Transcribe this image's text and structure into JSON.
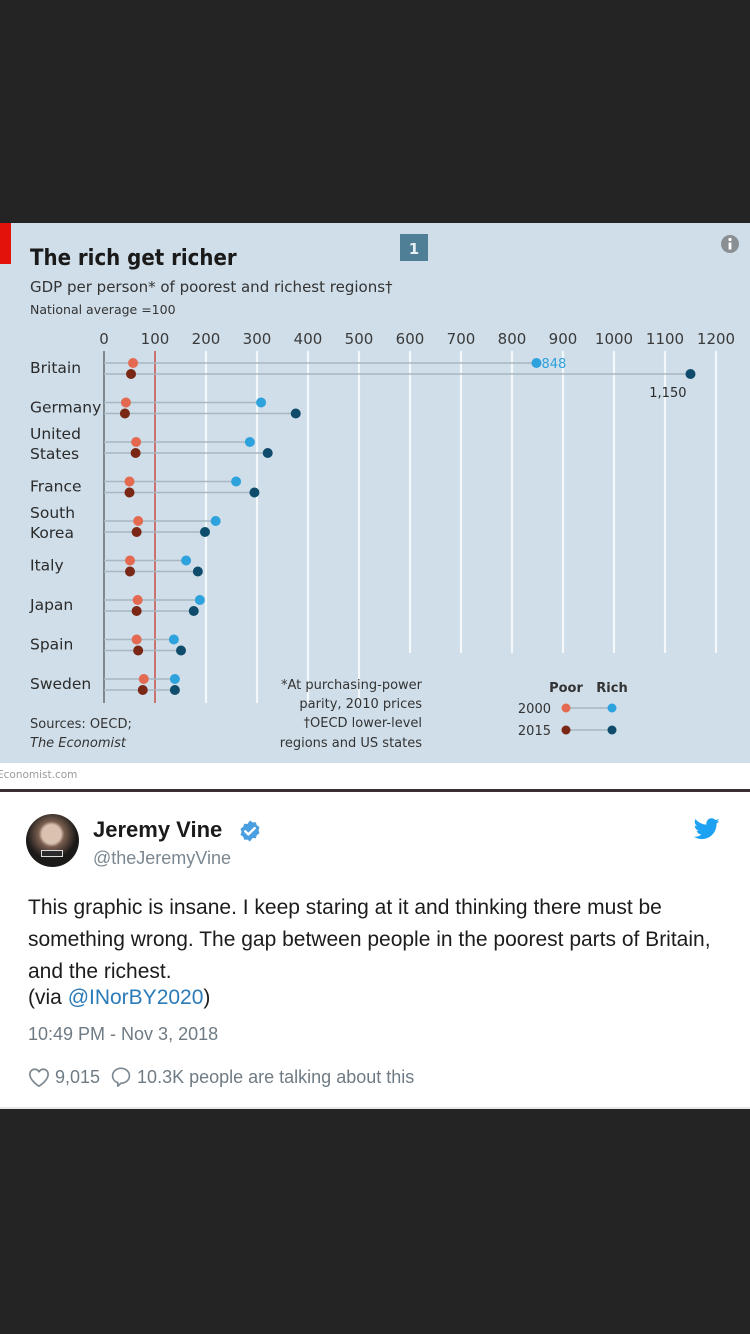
{
  "chart_data": {
    "type": "dot-range",
    "title": "The rich get richer",
    "subtitle": "GDP per person* of poorest and richest regions†",
    "note_reference": "National average =100",
    "chart_number": "1",
    "xlabel": "",
    "ylabel": "",
    "xlim": [
      0,
      1200
    ],
    "ticks": [
      0,
      100,
      200,
      300,
      400,
      500,
      600,
      700,
      800,
      900,
      1000,
      1100,
      1200
    ],
    "tick_labels": [
      "0",
      "100",
      "200",
      "300",
      "400",
      "500",
      "600",
      "700",
      "800",
      "900",
      "1000",
      "1100",
      "1200"
    ],
    "reference_line": 100,
    "grid": true,
    "categories": [
      "Britain",
      "Germany",
      "United States",
      "France",
      "South Korea",
      "Italy",
      "Japan",
      "Spain",
      "Sweden"
    ],
    "category_lines": [
      [
        "Britain"
      ],
      [
        "Germany"
      ],
      [
        "United",
        "States"
      ],
      [
        "France"
      ],
      [
        "South",
        "Korea"
      ],
      [
        "Italy"
      ],
      [
        "Japan"
      ],
      [
        "Spain"
      ],
      [
        "Sweden"
      ]
    ],
    "series": [
      {
        "name": "Poor 2000",
        "group": "Poor",
        "year": "2000",
        "color": "#e36a50",
        "values": [
          57,
          43,
          63,
          50,
          67,
          51,
          66,
          64,
          78
        ]
      },
      {
        "name": "Poor 2015",
        "group": "Poor",
        "year": "2015",
        "color": "#7a2716",
        "values": [
          53,
          41,
          62,
          50,
          64,
          51,
          64,
          67,
          76
        ]
      },
      {
        "name": "Rich 2000",
        "group": "Rich",
        "year": "2000",
        "color": "#2ea2dc",
        "values": [
          848,
          308,
          286,
          259,
          219,
          161,
          188,
          137,
          139
        ]
      },
      {
        "name": "Rich 2015",
        "group": "Rich",
        "year": "2015",
        "color": "#0f4c6b",
        "values": [
          1150,
          376,
          321,
          295,
          198,
          184,
          176,
          151,
          139
        ]
      }
    ],
    "annotations": [
      {
        "text": "848",
        "category": "Britain",
        "series": "Rich 2000"
      },
      {
        "text": "1,150",
        "category": "Britain",
        "series": "Rich 2015"
      }
    ],
    "legend": {
      "placement": "bottom-right",
      "col_headers": [
        "Poor",
        "Rich"
      ],
      "row_labels": [
        "2000",
        "2015"
      ]
    },
    "footnotes": [
      "*At purchasing-power",
      "parity, 2010 prices",
      "†OECD lower-level",
      "regions and US states"
    ],
    "sources": [
      "Sources: OECD;",
      "The Economist"
    ]
  },
  "colors": {
    "panel_bg": "#cfdee9",
    "brand_red": "#e3120b",
    "reference_line": "#c0504d",
    "twitter_blue": "#1da1f2",
    "link": "#2b7bb9"
  },
  "site_label": "Economist.com",
  "tweet": {
    "author_name": "Jeremy Vine",
    "handle": "@theJeremyVine",
    "verified": true,
    "text": "This graphic is insane. I keep staring at it and thinking there must be something wrong. The gap between people in the poorest parts of Britain, and the richest.",
    "via_prefix": "(via ",
    "via_mention": "@INorBY2020",
    "via_suffix": ")",
    "timestamp": "10:49 PM - Nov 3, 2018",
    "likes": "9,015",
    "talking": "10.3K people are talking about this",
    "icons": {
      "like": "heart-outline-icon",
      "reply": "speech-bubble-icon",
      "brand": "twitter-bird-icon",
      "verified": "verified-badge-icon"
    }
  }
}
